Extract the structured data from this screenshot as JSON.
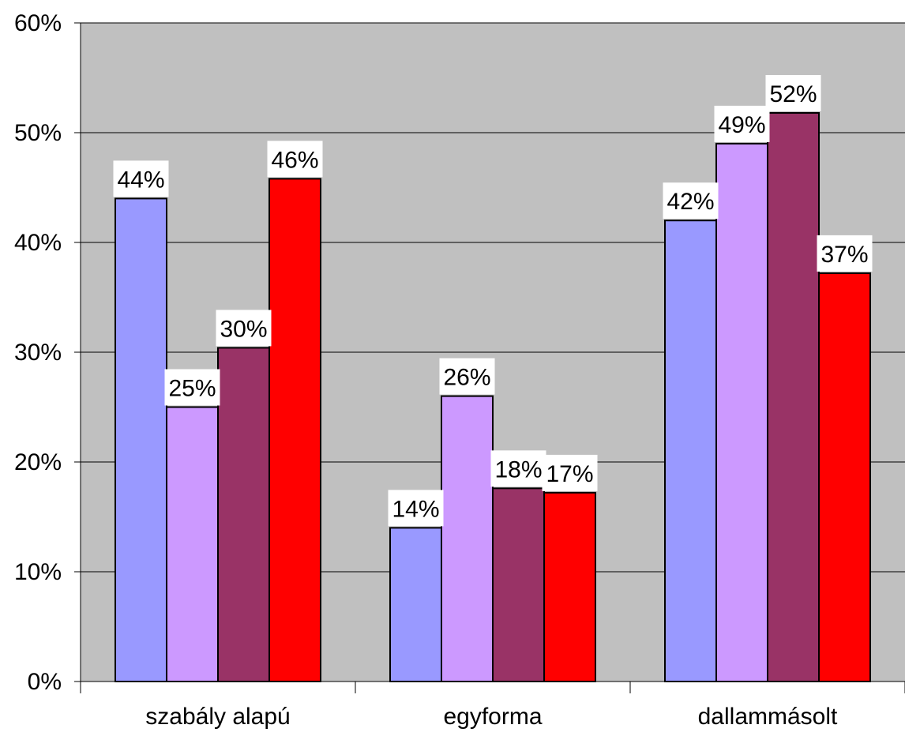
{
  "chart_data": {
    "type": "bar",
    "categories": [
      "szabály alapú",
      "egyforma",
      "dallammásolt"
    ],
    "series": [
      {
        "values": [
          44,
          14,
          42
        ],
        "labels": [
          "44%",
          "14%",
          "42%"
        ],
        "color": "#9999ff"
      },
      {
        "values": [
          25,
          26,
          49
        ],
        "labels": [
          "25%",
          "26%",
          "49%"
        ],
        "color": "#cc99ff"
      },
      {
        "values": [
          30.4,
          17.6,
          51.8
        ],
        "labels": [
          "30%",
          "18%",
          "52%"
        ],
        "color": "#993366"
      },
      {
        "values": [
          45.8,
          17.2,
          37.2
        ],
        "labels": [
          "46%",
          "17%",
          "37%"
        ],
        "color": "#ff0000"
      }
    ],
    "yticks": [
      "0%",
      "10%",
      "20%",
      "30%",
      "40%",
      "50%",
      "60%"
    ],
    "ylim": [
      0,
      60
    ],
    "grid": true,
    "plot_background": "#c0c0c0",
    "title": "",
    "xlabel": "",
    "ylabel": ""
  }
}
